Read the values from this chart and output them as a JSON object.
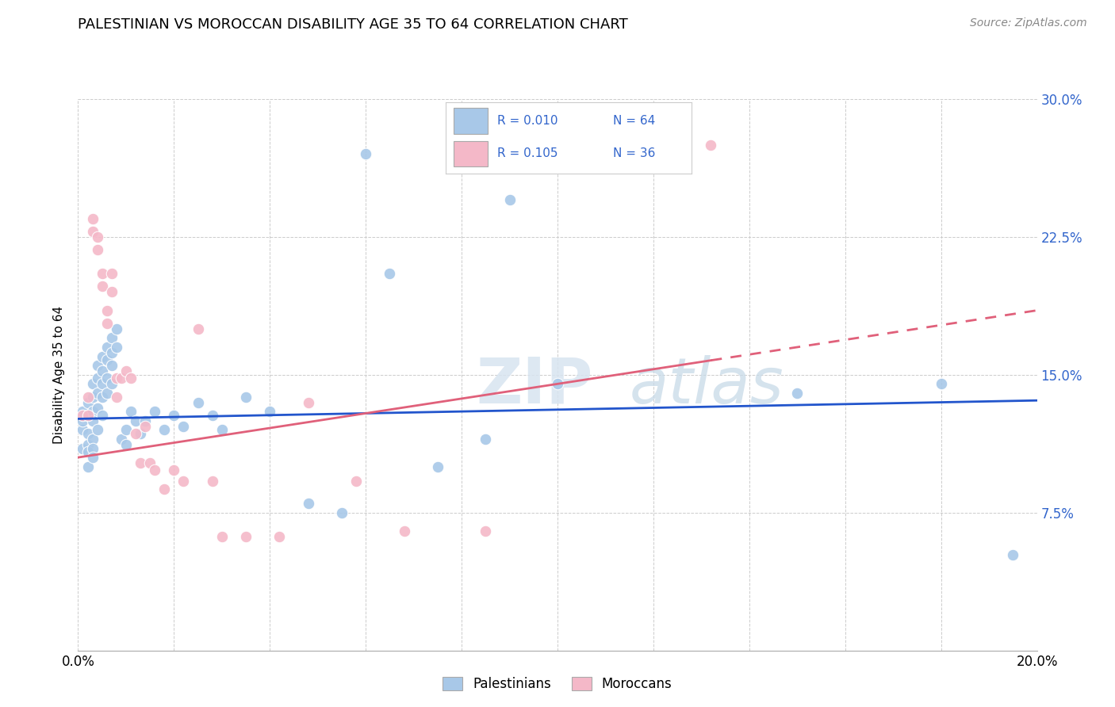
{
  "title": "PALESTINIAN VS MOROCCAN DISABILITY AGE 35 TO 64 CORRELATION CHART",
  "source": "Source: ZipAtlas.com",
  "ylabel": "Disability Age 35 to 64",
  "xlim": [
    0.0,
    0.2
  ],
  "ylim": [
    0.0,
    0.3
  ],
  "xticks": [
    0.0,
    0.02,
    0.04,
    0.06,
    0.08,
    0.1,
    0.12,
    0.14,
    0.16,
    0.18,
    0.2
  ],
  "yticks": [
    0.0,
    0.075,
    0.15,
    0.225,
    0.3
  ],
  "yticklabels_right": [
    "",
    "7.5%",
    "15.0%",
    "22.5%",
    "30.0%"
  ],
  "legend_r1": "R = 0.010",
  "legend_n1": "N = 64",
  "legend_r2": "R = 0.105",
  "legend_n2": "N = 36",
  "blue_color": "#a8c8e8",
  "pink_color": "#f4b8c8",
  "line_blue": "#2255cc",
  "line_pink": "#e0607a",
  "label_color": "#3366cc",
  "watermark_zip": "ZIP",
  "watermark_atlas": "atlas",
  "palestinians_x": [
    0.001,
    0.001,
    0.001,
    0.001,
    0.002,
    0.002,
    0.002,
    0.002,
    0.002,
    0.002,
    0.003,
    0.003,
    0.003,
    0.003,
    0.003,
    0.003,
    0.003,
    0.004,
    0.004,
    0.004,
    0.004,
    0.004,
    0.005,
    0.005,
    0.005,
    0.005,
    0.005,
    0.006,
    0.006,
    0.006,
    0.006,
    0.007,
    0.007,
    0.007,
    0.007,
    0.008,
    0.008,
    0.009,
    0.01,
    0.01,
    0.011,
    0.012,
    0.013,
    0.014,
    0.016,
    0.018,
    0.02,
    0.022,
    0.025,
    0.028,
    0.03,
    0.035,
    0.04,
    0.048,
    0.055,
    0.06,
    0.065,
    0.075,
    0.085,
    0.09,
    0.1,
    0.15,
    0.18,
    0.195
  ],
  "palestinians_y": [
    0.12,
    0.125,
    0.13,
    0.11,
    0.135,
    0.128,
    0.118,
    0.112,
    0.108,
    0.1,
    0.145,
    0.138,
    0.13,
    0.125,
    0.115,
    0.11,
    0.105,
    0.155,
    0.148,
    0.14,
    0.132,
    0.12,
    0.16,
    0.152,
    0.145,
    0.138,
    0.128,
    0.165,
    0.158,
    0.148,
    0.14,
    0.17,
    0.162,
    0.155,
    0.145,
    0.175,
    0.165,
    0.115,
    0.12,
    0.112,
    0.13,
    0.125,
    0.118,
    0.125,
    0.13,
    0.12,
    0.128,
    0.122,
    0.135,
    0.128,
    0.12,
    0.138,
    0.13,
    0.08,
    0.075,
    0.27,
    0.205,
    0.1,
    0.115,
    0.245,
    0.145,
    0.14,
    0.145,
    0.052
  ],
  "moroccans_x": [
    0.001,
    0.002,
    0.002,
    0.003,
    0.003,
    0.004,
    0.004,
    0.005,
    0.005,
    0.006,
    0.006,
    0.007,
    0.007,
    0.008,
    0.008,
    0.009,
    0.01,
    0.011,
    0.012,
    0.013,
    0.014,
    0.015,
    0.016,
    0.018,
    0.02,
    0.022,
    0.025,
    0.028,
    0.03,
    0.035,
    0.042,
    0.048,
    0.058,
    0.068,
    0.085,
    0.132
  ],
  "moroccans_y": [
    0.128,
    0.138,
    0.128,
    0.235,
    0.228,
    0.225,
    0.218,
    0.205,
    0.198,
    0.185,
    0.178,
    0.205,
    0.195,
    0.148,
    0.138,
    0.148,
    0.152,
    0.148,
    0.118,
    0.102,
    0.122,
    0.102,
    0.098,
    0.088,
    0.098,
    0.092,
    0.175,
    0.092,
    0.062,
    0.062,
    0.062,
    0.135,
    0.092,
    0.065,
    0.065,
    0.275
  ]
}
